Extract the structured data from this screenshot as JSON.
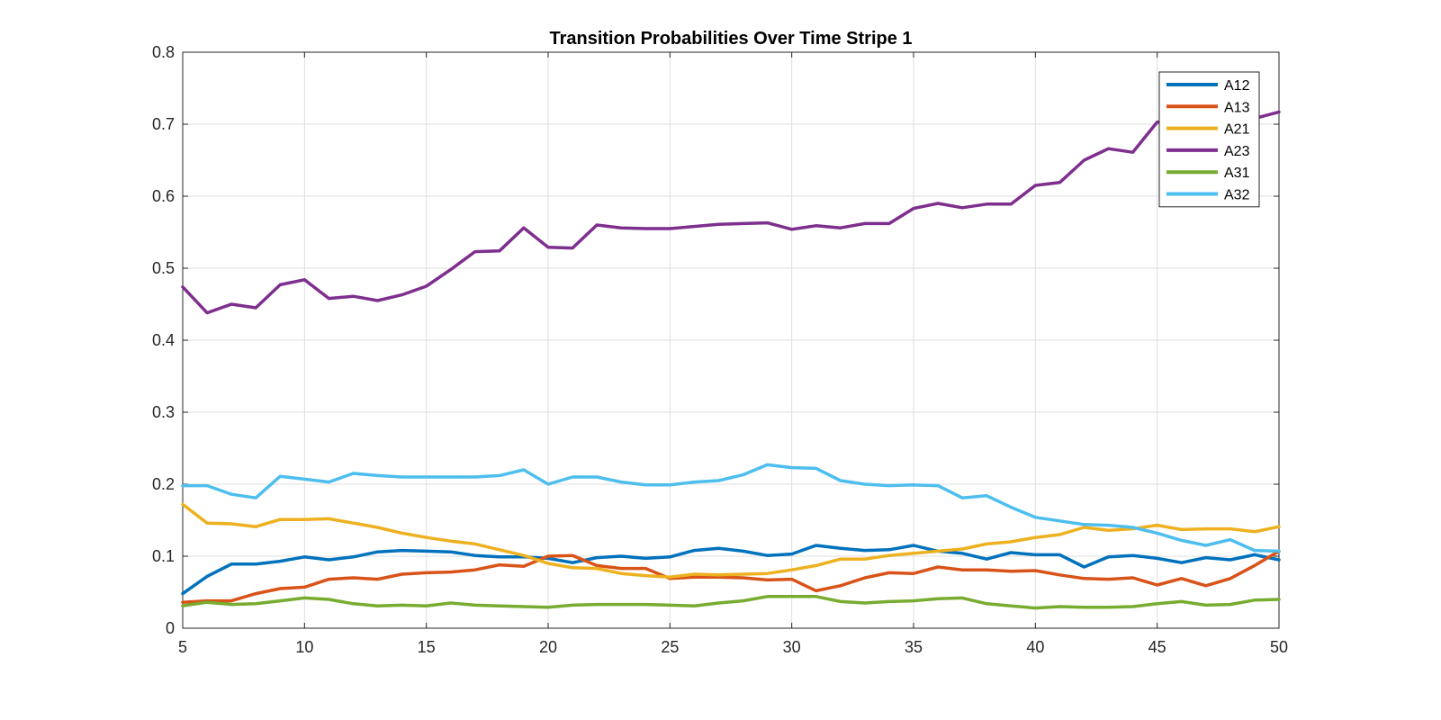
{
  "chart_data": {
    "type": "line",
    "title": "Transition Probabilities Over Time Stripe 1",
    "xlabel": "",
    "ylabel": "",
    "xlim": [
      5,
      50
    ],
    "ylim": [
      0,
      0.8
    ],
    "xticks": [
      5,
      10,
      15,
      20,
      25,
      30,
      35,
      40,
      45,
      50
    ],
    "yticks": [
      0,
      0.1,
      0.2,
      0.3,
      0.4,
      0.5,
      0.6,
      0.7,
      0.8
    ],
    "xtick_labels": [
      "5",
      "10",
      "15",
      "20",
      "25",
      "30",
      "35",
      "40",
      "45",
      "50"
    ],
    "ytick_labels": [
      "0",
      "0.1",
      "0.2",
      "0.3",
      "0.4",
      "0.5",
      "0.6",
      "0.7",
      "0.8"
    ],
    "grid": true,
    "legend_position": "top-right",
    "x": [
      5,
      6,
      7,
      8,
      9,
      10,
      11,
      12,
      13,
      14,
      15,
      16,
      17,
      18,
      19,
      20,
      21,
      22,
      23,
      24,
      25,
      26,
      27,
      28,
      29,
      30,
      31,
      32,
      33,
      34,
      35,
      36,
      37,
      38,
      39,
      40,
      41,
      42,
      43,
      44,
      45,
      46,
      47,
      48,
      49,
      50
    ],
    "series": [
      {
        "name": "A12",
        "color": "#0072BD",
        "values": [
          0.048,
          0.072,
          0.089,
          0.089,
          0.093,
          0.099,
          0.095,
          0.099,
          0.106,
          0.108,
          0.107,
          0.106,
          0.101,
          0.099,
          0.099,
          0.097,
          0.091,
          0.098,
          0.1,
          0.097,
          0.099,
          0.108,
          0.111,
          0.107,
          0.101,
          0.103,
          0.115,
          0.111,
          0.108,
          0.109,
          0.115,
          0.107,
          0.104,
          0.096,
          0.105,
          0.102,
          0.102,
          0.085,
          0.099,
          0.101,
          0.097,
          0.091,
          0.098,
          0.095,
          0.102,
          0.095
        ]
      },
      {
        "name": "A13",
        "color": "#D95319",
        "values": [
          0.036,
          0.038,
          0.038,
          0.048,
          0.055,
          0.057,
          0.068,
          0.07,
          0.068,
          0.075,
          0.077,
          0.078,
          0.081,
          0.088,
          0.086,
          0.1,
          0.101,
          0.087,
          0.083,
          0.083,
          0.069,
          0.071,
          0.071,
          0.07,
          0.067,
          0.068,
          0.052,
          0.059,
          0.07,
          0.077,
          0.076,
          0.085,
          0.081,
          0.081,
          0.079,
          0.08,
          0.074,
          0.069,
          0.068,
          0.07,
          0.06,
          0.069,
          0.059,
          0.069,
          0.087,
          0.107
        ]
      },
      {
        "name": "A21",
        "color": "#EDB120",
        "values": [
          0.172,
          0.146,
          0.145,
          0.141,
          0.151,
          0.151,
          0.152,
          0.146,
          0.14,
          0.132,
          0.126,
          0.121,
          0.117,
          0.109,
          0.101,
          0.09,
          0.084,
          0.083,
          0.076,
          0.073,
          0.071,
          0.075,
          0.074,
          0.075,
          0.076,
          0.081,
          0.087,
          0.096,
          0.096,
          0.101,
          0.104,
          0.107,
          0.11,
          0.117,
          0.12,
          0.126,
          0.13,
          0.14,
          0.136,
          0.138,
          0.143,
          0.137,
          0.138,
          0.138,
          0.134,
          0.141
        ]
      },
      {
        "name": "A23",
        "color": "#7E2F8E",
        "values": [
          0.474,
          0.438,
          0.45,
          0.445,
          0.477,
          0.484,
          0.458,
          0.461,
          0.455,
          0.463,
          0.475,
          0.498,
          0.523,
          0.524,
          0.556,
          0.529,
          0.528,
          0.56,
          0.556,
          0.555,
          0.555,
          0.558,
          0.561,
          0.562,
          0.563,
          0.554,
          0.559,
          0.556,
          0.562,
          0.562,
          0.583,
          0.59,
          0.584,
          0.589,
          0.589,
          0.615,
          0.619,
          0.65,
          0.666,
          0.661,
          0.703,
          0.702,
          0.702,
          0.703,
          0.708,
          0.717
        ]
      },
      {
        "name": "A31",
        "color": "#77AC30",
        "values": [
          0.031,
          0.036,
          0.033,
          0.034,
          0.038,
          0.042,
          0.04,
          0.034,
          0.031,
          0.032,
          0.031,
          0.035,
          0.032,
          0.031,
          0.03,
          0.029,
          0.032,
          0.033,
          0.033,
          0.033,
          0.032,
          0.031,
          0.035,
          0.038,
          0.044,
          0.044,
          0.044,
          0.037,
          0.035,
          0.037,
          0.038,
          0.041,
          0.042,
          0.034,
          0.031,
          0.028,
          0.03,
          0.029,
          0.029,
          0.03,
          0.034,
          0.037,
          0.032,
          0.033,
          0.039,
          0.04
        ]
      },
      {
        "name": "A32",
        "color": "#4DBEEE",
        "values": [
          0.198,
          0.198,
          0.186,
          0.181,
          0.211,
          0.207,
          0.203,
          0.215,
          0.212,
          0.21,
          0.21,
          0.21,
          0.21,
          0.212,
          0.22,
          0.2,
          0.21,
          0.21,
          0.203,
          0.199,
          0.199,
          0.203,
          0.205,
          0.213,
          0.227,
          0.223,
          0.222,
          0.205,
          0.2,
          0.198,
          0.199,
          0.198,
          0.181,
          0.184,
          0.168,
          0.154,
          0.149,
          0.144,
          0.143,
          0.14,
          0.132,
          0.122,
          0.115,
          0.123,
          0.108,
          0.107
        ]
      }
    ]
  }
}
